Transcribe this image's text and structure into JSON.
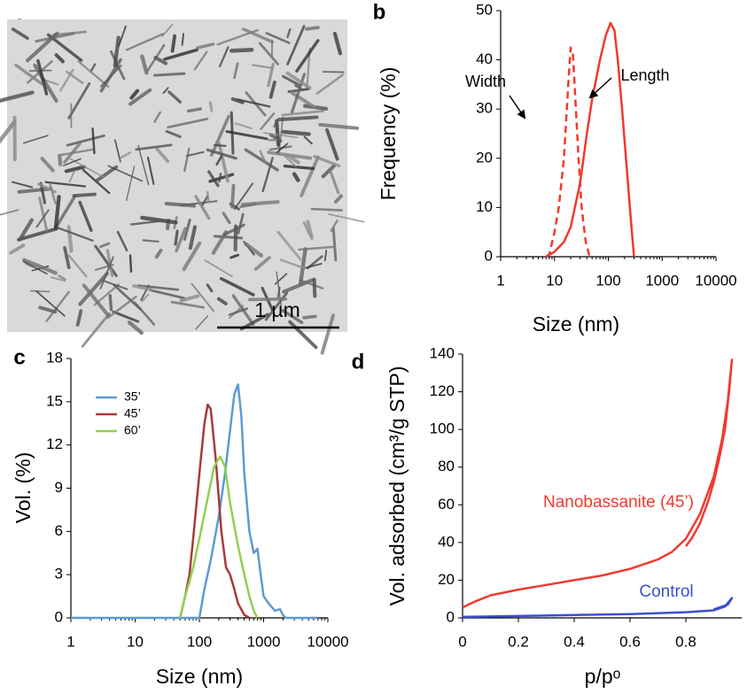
{
  "chart_data": [
    {
      "type": "image",
      "label": "a",
      "scale_bar": "1 µm"
    },
    {
      "type": "line",
      "label": "b",
      "xlabel": "Size (nm)",
      "ylabel": "Frequency (%)",
      "xscale": "log",
      "xlim": [
        1,
        10000
      ],
      "xticks": [
        1,
        10,
        100,
        1000,
        10000
      ],
      "ylim": [
        0,
        50
      ],
      "yticks": [
        0,
        10,
        20,
        30,
        40,
        50
      ],
      "series": [
        {
          "name": "Width",
          "color": "#f03a2e",
          "linestyle": "dashed",
          "x": [
            7,
            8,
            10,
            12,
            15,
            18,
            20,
            22,
            25,
            28,
            32,
            38,
            45
          ],
          "values": [
            0,
            0.5,
            5,
            10,
            20,
            35,
            42.5,
            41,
            30,
            20,
            10,
            3,
            0
          ]
        },
        {
          "name": "Length",
          "color": "#f03a2e",
          "linestyle": "solid",
          "x": [
            7,
            10,
            15,
            20,
            30,
            40,
            50,
            70,
            90,
            110,
            130,
            150,
            180,
            220,
            260,
            300
          ],
          "values": [
            0,
            1,
            3,
            6,
            15,
            25,
            32,
            40,
            45,
            47.5,
            46,
            40,
            30,
            18,
            8,
            0
          ]
        }
      ]
    },
    {
      "type": "line",
      "label": "c",
      "xlabel": "Size (nm)",
      "ylabel": "Vol. (%)",
      "xscale": "log",
      "legend": "upper left",
      "xlim": [
        1,
        10000
      ],
      "xticks": [
        1,
        10,
        100,
        1000,
        10000
      ],
      "ylim": [
        0,
        18
      ],
      "yticks": [
        0,
        3,
        6,
        9,
        12,
        15,
        18
      ],
      "series": [
        {
          "name": "35’",
          "color": "#5b9bd5",
          "x": [
            1,
            100,
            120,
            150,
            200,
            250,
            300,
            350,
            400,
            450,
            500,
            600,
            700,
            800,
            900,
            1000,
            1200,
            1500,
            1800,
            2000,
            2200,
            7000
          ],
          "values": [
            0,
            0,
            2,
            4,
            7,
            10,
            13,
            15.5,
            16.2,
            14,
            10,
            6,
            4.5,
            4.8,
            3,
            1.5,
            1,
            0.5,
            0.6,
            0.2,
            0,
            0
          ]
        },
        {
          "name": "45’",
          "color": "#a93a3a",
          "x": [
            50,
            60,
            70,
            80,
            100,
            120,
            135,
            150,
            180,
            220,
            260,
            300,
            350,
            400,
            500,
            600
          ],
          "values": [
            0,
            1.5,
            3,
            5.5,
            10,
            13.5,
            14.8,
            14.5,
            11,
            6,
            3.5,
            3,
            2,
            1,
            0.2,
            0
          ]
        },
        {
          "name": "60’",
          "color": "#92d050",
          "x": [
            50,
            60,
            70,
            80,
            100,
            130,
            170,
            210,
            250,
            300,
            400,
            500,
            600,
            700,
            800
          ],
          "values": [
            0,
            1.5,
            2.5,
            3.5,
            5.5,
            8,
            10.5,
            11.2,
            10.5,
            8,
            5,
            3,
            1.5,
            0.5,
            0
          ]
        }
      ]
    },
    {
      "type": "line",
      "label": "d",
      "xlabel": "p/pᵒ",
      "ylabel": "Vol. adsorbed (cm³/g STP)",
      "xlim": [
        0,
        1
      ],
      "xticks": [
        0,
        0.2,
        0.4,
        0.6,
        0.8
      ],
      "ylim": [
        0,
        140
      ],
      "yticks": [
        0,
        20,
        40,
        60,
        80,
        100,
        120,
        140
      ],
      "series": [
        {
          "name": "Nanobassanite (45’)",
          "color": "#f03a2e",
          "x": [
            0,
            0.05,
            0.1,
            0.2,
            0.3,
            0.4,
            0.5,
            0.6,
            0.7,
            0.75,
            0.8,
            0.85,
            0.9,
            0.93,
            0.95,
            0.965,
            0.955,
            0.94,
            0.92,
            0.9,
            0.88,
            0.85,
            0.82,
            0.8
          ],
          "values": [
            5.5,
            9,
            12,
            15,
            17.5,
            20,
            22.5,
            26,
            31,
            35,
            42,
            55,
            75,
            95,
            115,
            137,
            120,
            100,
            85,
            72,
            62,
            50,
            42,
            38
          ]
        },
        {
          "name": "Control",
          "color": "#3a4fd0",
          "x": [
            0,
            0.2,
            0.4,
            0.6,
            0.8,
            0.9,
            0.94,
            0.965,
            0.95,
            0.9
          ],
          "values": [
            0.5,
            1,
            1.5,
            2,
            3,
            4,
            6,
            10.5,
            7,
            4.5
          ]
        }
      ]
    }
  ]
}
